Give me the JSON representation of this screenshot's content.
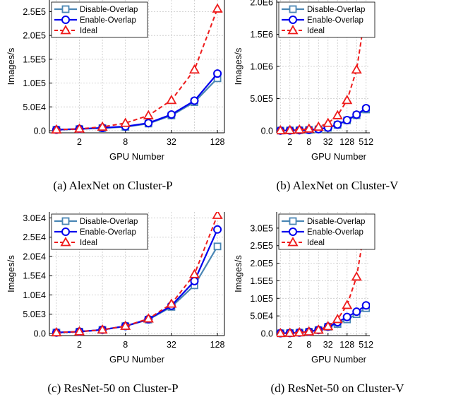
{
  "chart_data": [
    {
      "type": "line",
      "caption": "(a) AlexNet on Cluster-P",
      "xlabel": "GPU Number",
      "ylabel": "Images/s",
      "x": [
        1,
        2,
        4,
        8,
        16,
        32,
        64,
        128
      ],
      "xticks": [
        {
          "value": 2,
          "label": "2"
        },
        {
          "value": 8,
          "label": "8"
        },
        {
          "value": 32,
          "label": "32"
        },
        {
          "value": 128,
          "label": "128"
        }
      ],
      "xlim": [
        1,
        128
      ],
      "ylim": [
        0,
        270000
      ],
      "yticks": [
        {
          "value": 0,
          "label": "0.0"
        },
        {
          "value": 50000,
          "label": "5.0E4"
        },
        {
          "value": 100000,
          "label": "1.0E5"
        },
        {
          "value": 150000,
          "label": "1.5E5"
        },
        {
          "value": 200000,
          "label": "2.0E5"
        },
        {
          "value": 250000,
          "label": "2.5E5"
        }
      ],
      "grid": true,
      "legend_position": "top-left",
      "series": [
        {
          "name": "Disable-Overlap",
          "values": [
            2000,
            3500,
            5500,
            8000,
            15000,
            32000,
            60000,
            110000
          ]
        },
        {
          "name": "Enable-Overlap",
          "values": [
            2000,
            3800,
            6000,
            9000,
            16000,
            34000,
            63000,
            120000
          ]
        },
        {
          "name": "Ideal",
          "values": [
            2000,
            4000,
            8000,
            16000,
            32000,
            64000,
            128000,
            256000
          ]
        }
      ]
    },
    {
      "type": "line",
      "caption": "(b) AlexNet on Cluster-V",
      "xlabel": "GPU Number",
      "ylabel": "Images/s",
      "x": [
        1,
        2,
        4,
        8,
        16,
        32,
        64,
        128,
        256,
        512
      ],
      "xticks": [
        {
          "value": 2,
          "label": "2"
        },
        {
          "value": 8,
          "label": "8"
        },
        {
          "value": 32,
          "label": "32"
        },
        {
          "value": 128,
          "label": "128"
        },
        {
          "value": 512,
          "label": "512"
        }
      ],
      "xlim": [
        1,
        512
      ],
      "ylim": [
        0,
        2000000
      ],
      "yticks": [
        {
          "value": 0,
          "label": "0.0"
        },
        {
          "value": 500000,
          "label": "5.0E5"
        },
        {
          "value": 1000000,
          "label": "1.0E6"
        },
        {
          "value": 1500000,
          "label": "1.5E6"
        },
        {
          "value": 2000000,
          "label": "2.0E6"
        }
      ],
      "grid": true,
      "legend_position": "top-left",
      "series": [
        {
          "name": "Disable-Overlap",
          "values": [
            2000,
            4000,
            7000,
            12000,
            22000,
            45000,
            90000,
            160000,
            240000,
            330000
          ]
        },
        {
          "name": "Enable-Overlap",
          "values": [
            2000,
            4000,
            7500,
            13000,
            24000,
            48000,
            95000,
            165000,
            250000,
            350000
          ]
        },
        {
          "name": "Ideal",
          "values": [
            3700,
            7400,
            14800,
            29600,
            59200,
            118000,
            237000,
            474000,
            948000,
            1896000
          ]
        }
      ]
    },
    {
      "type": "line",
      "caption": "(c) ResNet-50 on Cluster-P",
      "xlabel": "GPU Number",
      "ylabel": "Images/s",
      "x": [
        1,
        2,
        4,
        8,
        16,
        32,
        64,
        128
      ],
      "xticks": [
        {
          "value": 2,
          "label": "2"
        },
        {
          "value": 8,
          "label": "8"
        },
        {
          "value": 32,
          "label": "32"
        },
        {
          "value": 128,
          "label": "128"
        }
      ],
      "xlim": [
        1,
        128
      ],
      "ylim": [
        0,
        31000
      ],
      "yticks": [
        {
          "value": 0,
          "label": "0.0"
        },
        {
          "value": 5000,
          "label": "5.0E3"
        },
        {
          "value": 10000,
          "label": "1.0E4"
        },
        {
          "value": 15000,
          "label": "1.5E4"
        },
        {
          "value": 20000,
          "label": "2.0E4"
        },
        {
          "value": 25000,
          "label": "2.5E4"
        },
        {
          "value": 30000,
          "label": "3.0E4"
        }
      ],
      "grid": true,
      "legend_position": "top-left",
      "series": [
        {
          "name": "Disable-Overlap",
          "values": [
            240,
            480,
            950,
            1900,
            3600,
            6900,
            12500,
            22600
          ]
        },
        {
          "name": "Enable-Overlap",
          "values": [
            240,
            480,
            960,
            1920,
            3700,
            7200,
            13600,
            27000
          ]
        },
        {
          "name": "Ideal",
          "values": [
            240,
            480,
            960,
            1920,
            3840,
            7680,
            15360,
            30720
          ]
        }
      ]
    },
    {
      "type": "line",
      "caption": "(d) ResNet-50 on Cluster-V",
      "xlabel": "GPU Number",
      "ylabel": "Images/s",
      "x": [
        1,
        2,
        4,
        8,
        16,
        32,
        64,
        128,
        256,
        512
      ],
      "xticks": [
        {
          "value": 2,
          "label": "2"
        },
        {
          "value": 8,
          "label": "8"
        },
        {
          "value": 32,
          "label": "32"
        },
        {
          "value": 128,
          "label": "128"
        },
        {
          "value": 512,
          "label": "512"
        }
      ],
      "xlim": [
        1,
        512
      ],
      "ylim": [
        0,
        340000
      ],
      "yticks": [
        {
          "value": 0,
          "label": "0.0"
        },
        {
          "value": 50000,
          "label": "5.0E4"
        },
        {
          "value": 100000,
          "label": "1.0E5"
        },
        {
          "value": 150000,
          "label": "1.5E5"
        },
        {
          "value": 200000,
          "label": "2.0E5"
        },
        {
          "value": 250000,
          "label": "2.5E5"
        },
        {
          "value": 300000,
          "label": "3.0E5"
        }
      ],
      "grid": true,
      "legend_position": "top-left",
      "series": [
        {
          "name": "Disable-Overlap",
          "values": [
            630,
            1250,
            2500,
            5000,
            9800,
            19000,
            27000,
            40000,
            55000,
            72000
          ]
        },
        {
          "name": "Enable-Overlap",
          "values": [
            630,
            1250,
            2500,
            5000,
            10000,
            19500,
            32000,
            47000,
            62000,
            80000
          ]
        },
        {
          "name": "Ideal",
          "values": [
            630,
            1260,
            2520,
            5040,
            10080,
            20160,
            40320,
            80640,
            161280,
            322560
          ]
        }
      ]
    }
  ],
  "colors": {
    "disable": "#4a86b4",
    "enable": "#0000ee",
    "ideal": "#ee1c1c",
    "grid": "#c8c8c8"
  }
}
